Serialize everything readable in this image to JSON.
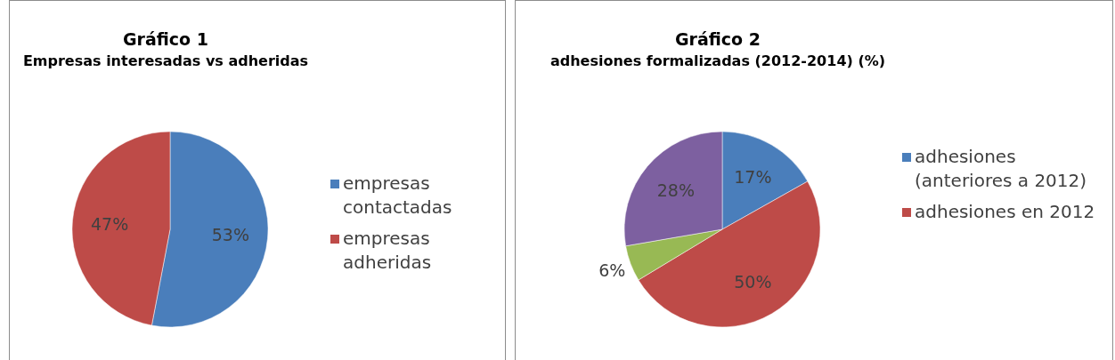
{
  "chart_data": [
    {
      "type": "pie",
      "title": "Gráfico 1",
      "subtitle": "Empresas interesadas vs adheridas",
      "categories": [
        "empresas contactadas",
        "empresas adheridas"
      ],
      "values": [
        53,
        47
      ],
      "colors": [
        "#4a7ebb",
        "#be4b48"
      ],
      "value_labels": [
        "53%",
        "47%"
      ],
      "legend": "right"
    },
    {
      "type": "pie",
      "title": "Gráfico 2",
      "subtitle": "adhesiones formalizadas (2012-2014) (%)",
      "categories": [
        "adhesiones (anteriores a 2012)",
        "adhesiones en 2012",
        null,
        null
      ],
      "values": [
        17,
        50,
        6,
        28
      ],
      "colors": [
        "#4a7ebb",
        "#be4b48",
        "#98b954",
        "#7d60a0"
      ],
      "value_labels": [
        "17%",
        "50%",
        "6%",
        "28%"
      ],
      "legend": "right"
    }
  ]
}
